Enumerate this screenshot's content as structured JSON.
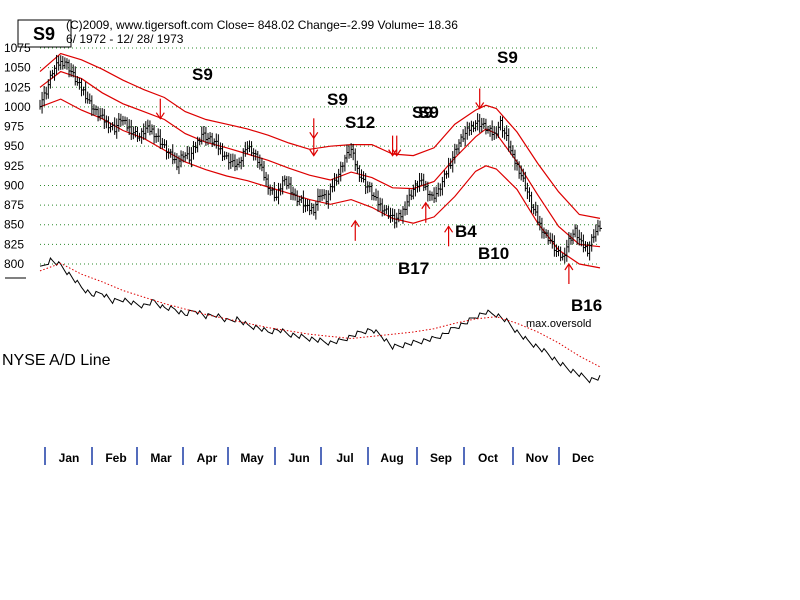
{
  "header": {
    "badge": "S9",
    "line1": "(C)2009, www.tigersoft.com    Close=  848.02  Change=-2.99 Volume= 18.36",
    "line2": "6/ 1972 - 12/ 28/ 1973"
  },
  "chart_data": {
    "type": "line",
    "title": "",
    "y_ticks": [
      1075,
      1050,
      1025,
      1000,
      975,
      950,
      925,
      900,
      875,
      850,
      825,
      800
    ],
    "ylim": [
      792,
      1077
    ],
    "grid": true,
    "months": [
      "Jan",
      "Feb",
      "Mar",
      "Apr",
      "May",
      "Jun",
      "Jul",
      "Aug",
      "Sep",
      "Oct",
      "Nov",
      "Dec"
    ],
    "price_close": [
      [
        0,
        1005
      ],
      [
        3,
        1020
      ],
      [
        6,
        1045
      ],
      [
        9,
        1055
      ],
      [
        12,
        1058
      ],
      [
        15,
        1045
      ],
      [
        18,
        1030
      ],
      [
        21,
        1020
      ],
      [
        24,
        1005
      ],
      [
        27,
        993
      ],
      [
        30,
        985
      ],
      [
        33,
        978
      ],
      [
        36,
        972
      ],
      [
        39,
        985
      ],
      [
        42,
        975
      ],
      [
        45,
        968
      ],
      [
        48,
        962
      ],
      [
        51,
        972
      ],
      [
        54,
        970
      ],
      [
        57,
        960
      ],
      [
        60,
        948
      ],
      [
        63,
        938
      ],
      [
        66,
        928
      ],
      [
        69,
        940
      ],
      [
        72,
        935
      ],
      [
        75,
        950
      ],
      [
        78,
        966
      ],
      [
        81,
        960
      ],
      [
        84,
        955
      ],
      [
        87,
        945
      ],
      [
        90,
        935
      ],
      [
        93,
        928
      ],
      [
        96,
        925
      ],
      [
        99,
        950
      ],
      [
        102,
        945
      ],
      [
        105,
        932
      ],
      [
        108,
        912
      ],
      [
        111,
        895
      ],
      [
        114,
        885
      ],
      [
        117,
        905
      ],
      [
        120,
        900
      ],
      [
        123,
        885
      ],
      [
        126,
        880
      ],
      [
        129,
        870
      ],
      [
        132,
        870
      ],
      [
        135,
        890
      ],
      [
        138,
        882
      ],
      [
        141,
        900
      ],
      [
        144,
        915
      ],
      [
        147,
        935
      ],
      [
        150,
        945
      ],
      [
        153,
        920
      ],
      [
        156,
        905
      ],
      [
        159,
        895
      ],
      [
        162,
        880
      ],
      [
        165,
        872
      ],
      [
        168,
        865
      ],
      [
        171,
        855
      ],
      [
        174,
        862
      ],
      [
        177,
        880
      ],
      [
        180,
        895
      ],
      [
        183,
        905
      ],
      [
        186,
        897
      ],
      [
        189,
        885
      ],
      [
        192,
        892
      ],
      [
        195,
        910
      ],
      [
        198,
        930
      ],
      [
        201,
        950
      ],
      [
        204,
        962
      ],
      [
        207,
        972
      ],
      [
        210,
        980
      ],
      [
        213,
        978
      ],
      [
        216,
        970
      ],
      [
        219,
        965
      ],
      [
        222,
        980
      ],
      [
        225,
        960
      ],
      [
        228,
        935
      ],
      [
        231,
        920
      ],
      [
        234,
        900
      ],
      [
        237,
        875
      ],
      [
        240,
        855
      ],
      [
        243,
        840
      ],
      [
        246,
        830
      ],
      [
        249,
        815
      ],
      [
        252,
        808
      ],
      [
        255,
        830
      ],
      [
        258,
        842
      ],
      [
        261,
        825
      ],
      [
        264,
        818
      ],
      [
        267,
        838
      ],
      [
        270,
        848.02
      ]
    ],
    "upper_band": [
      [
        0,
        1045
      ],
      [
        10,
        1068
      ],
      [
        20,
        1060
      ],
      [
        30,
        1048
      ],
      [
        40,
        1034
      ],
      [
        50,
        1022
      ],
      [
        60,
        1012
      ],
      [
        70,
        994
      ],
      [
        80,
        984
      ],
      [
        90,
        978
      ],
      [
        100,
        972
      ],
      [
        110,
        964
      ],
      [
        120,
        954
      ],
      [
        130,
        946
      ],
      [
        140,
        950
      ],
      [
        150,
        952
      ],
      [
        160,
        952
      ],
      [
        170,
        940
      ],
      [
        180,
        938
      ],
      [
        190,
        948
      ],
      [
        200,
        978
      ],
      [
        210,
        996
      ],
      [
        215,
        1002
      ],
      [
        220,
        998
      ],
      [
        230,
        968
      ],
      [
        240,
        928
      ],
      [
        250,
        892
      ],
      [
        260,
        863
      ],
      [
        270,
        858
      ]
    ],
    "middle_band": [
      [
        0,
        1025
      ],
      [
        10,
        1045
      ],
      [
        20,
        1036
      ],
      [
        30,
        1018
      ],
      [
        40,
        1004
      ],
      [
        50,
        994
      ],
      [
        60,
        984
      ],
      [
        70,
        966
      ],
      [
        80,
        955
      ],
      [
        90,
        948
      ],
      [
        100,
        940
      ],
      [
        110,
        932
      ],
      [
        120,
        922
      ],
      [
        130,
        913
      ],
      [
        140,
        907
      ],
      [
        150,
        917
      ],
      [
        160,
        910
      ],
      [
        170,
        897
      ],
      [
        180,
        896
      ],
      [
        190,
        905
      ],
      [
        200,
        935
      ],
      [
        210,
        962
      ],
      [
        215,
        972
      ],
      [
        220,
        966
      ],
      [
        230,
        930
      ],
      [
        240,
        888
      ],
      [
        250,
        848
      ],
      [
        260,
        825
      ],
      [
        270,
        822
      ]
    ],
    "lower_band": [
      [
        0,
        1000
      ],
      [
        10,
        1010
      ],
      [
        20,
        996
      ],
      [
        30,
        985
      ],
      [
        40,
        970
      ],
      [
        50,
        960
      ],
      [
        60,
        945
      ],
      [
        70,
        930
      ],
      [
        80,
        920
      ],
      [
        90,
        912
      ],
      [
        100,
        906
      ],
      [
        110,
        898
      ],
      [
        120,
        890
      ],
      [
        130,
        882
      ],
      [
        140,
        876
      ],
      [
        150,
        882
      ],
      [
        160,
        872
      ],
      [
        170,
        858
      ],
      [
        180,
        852
      ],
      [
        190,
        860
      ],
      [
        200,
        886
      ],
      [
        210,
        918
      ],
      [
        215,
        925
      ],
      [
        220,
        921
      ],
      [
        230,
        895
      ],
      [
        240,
        852
      ],
      [
        250,
        818
      ],
      [
        260,
        800
      ],
      [
        270,
        795
      ]
    ],
    "ad_line": [
      [
        0,
        0.08
      ],
      [
        5,
        0.0
      ],
      [
        10,
        0.05
      ],
      [
        15,
        0.15
      ],
      [
        20,
        0.25
      ],
      [
        25,
        0.32
      ],
      [
        30,
        0.3
      ],
      [
        35,
        0.38
      ],
      [
        40,
        0.36
      ],
      [
        45,
        0.4
      ],
      [
        50,
        0.42
      ],
      [
        55,
        0.38
      ],
      [
        60,
        0.44
      ],
      [
        65,
        0.45
      ],
      [
        70,
        0.5
      ],
      [
        75,
        0.46
      ],
      [
        80,
        0.52
      ],
      [
        85,
        0.5
      ],
      [
        90,
        0.56
      ],
      [
        95,
        0.54
      ],
      [
        100,
        0.6
      ],
      [
        105,
        0.62
      ],
      [
        110,
        0.66
      ],
      [
        115,
        0.64
      ],
      [
        120,
        0.68
      ],
      [
        125,
        0.7
      ],
      [
        130,
        0.72
      ],
      [
        135,
        0.74
      ],
      [
        140,
        0.76
      ],
      [
        145,
        0.74
      ],
      [
        150,
        0.7
      ],
      [
        155,
        0.66
      ],
      [
        160,
        0.64
      ],
      [
        165,
        0.7
      ],
      [
        170,
        0.8
      ],
      [
        175,
        0.78
      ],
      [
        180,
        0.76
      ],
      [
        185,
        0.74
      ],
      [
        190,
        0.72
      ],
      [
        195,
        0.68
      ],
      [
        200,
        0.62
      ],
      [
        205,
        0.58
      ],
      [
        210,
        0.52
      ],
      [
        215,
        0.48
      ],
      [
        220,
        0.5
      ],
      [
        225,
        0.56
      ],
      [
        230,
        0.66
      ],
      [
        235,
        0.74
      ],
      [
        240,
        0.8
      ],
      [
        245,
        0.86
      ],
      [
        250,
        0.94
      ],
      [
        255,
        1.0
      ],
      [
        260,
        1.05
      ],
      [
        265,
        1.1
      ],
      [
        270,
        1.08
      ]
    ],
    "ad_ma": [
      [
        0,
        0.1
      ],
      [
        10,
        0.03
      ],
      [
        20,
        0.13
      ],
      [
        30,
        0.2
      ],
      [
        40,
        0.28
      ],
      [
        50,
        0.34
      ],
      [
        60,
        0.4
      ],
      [
        70,
        0.45
      ],
      [
        80,
        0.5
      ],
      [
        90,
        0.54
      ],
      [
        100,
        0.58
      ],
      [
        110,
        0.62
      ],
      [
        120,
        0.65
      ],
      [
        130,
        0.68
      ],
      [
        140,
        0.7
      ],
      [
        150,
        0.72
      ],
      [
        160,
        0.7
      ],
      [
        170,
        0.68
      ],
      [
        180,
        0.66
      ],
      [
        190,
        0.63
      ],
      [
        200,
        0.58
      ],
      [
        210,
        0.54
      ],
      [
        220,
        0.52
      ],
      [
        230,
        0.58
      ],
      [
        240,
        0.66
      ],
      [
        250,
        0.76
      ],
      [
        260,
        0.88
      ],
      [
        270,
        0.98
      ]
    ],
    "signals": [
      {
        "label": "S9",
        "x": 58,
        "price": 985,
        "dir": "down"
      },
      {
        "label": "S9",
        "x": 132,
        "price": 960,
        "dir": "down"
      },
      {
        "label": "S12",
        "x": 132,
        "price": 938,
        "dir": "down"
      },
      {
        "label": "S9",
        "x": 170,
        "price": 938,
        "dir": "down"
      },
      {
        "label": "S9",
        "x": 172,
        "price": 938,
        "dir": "down"
      },
      {
        "label": "B17",
        "x": 152,
        "price": 855,
        "dir": "up"
      },
      {
        "label": "B4",
        "x": 186,
        "price": 878,
        "dir": "up"
      },
      {
        "label": "B10",
        "x": 197,
        "price": 848,
        "dir": "up"
      },
      {
        "label": "S9",
        "x": 212,
        "price": 998,
        "dir": "down"
      },
      {
        "label": "B16",
        "x": 255,
        "price": 800,
        "dir": "up"
      }
    ],
    "annotations": [
      "max.oversold",
      "NYSE A/D Line"
    ]
  },
  "colors": {
    "price": "#000000",
    "band": "#dd0000",
    "grid": "#2e8b2e",
    "month_tick": "#1a3aa6",
    "ad_ma": "#dd0000"
  }
}
